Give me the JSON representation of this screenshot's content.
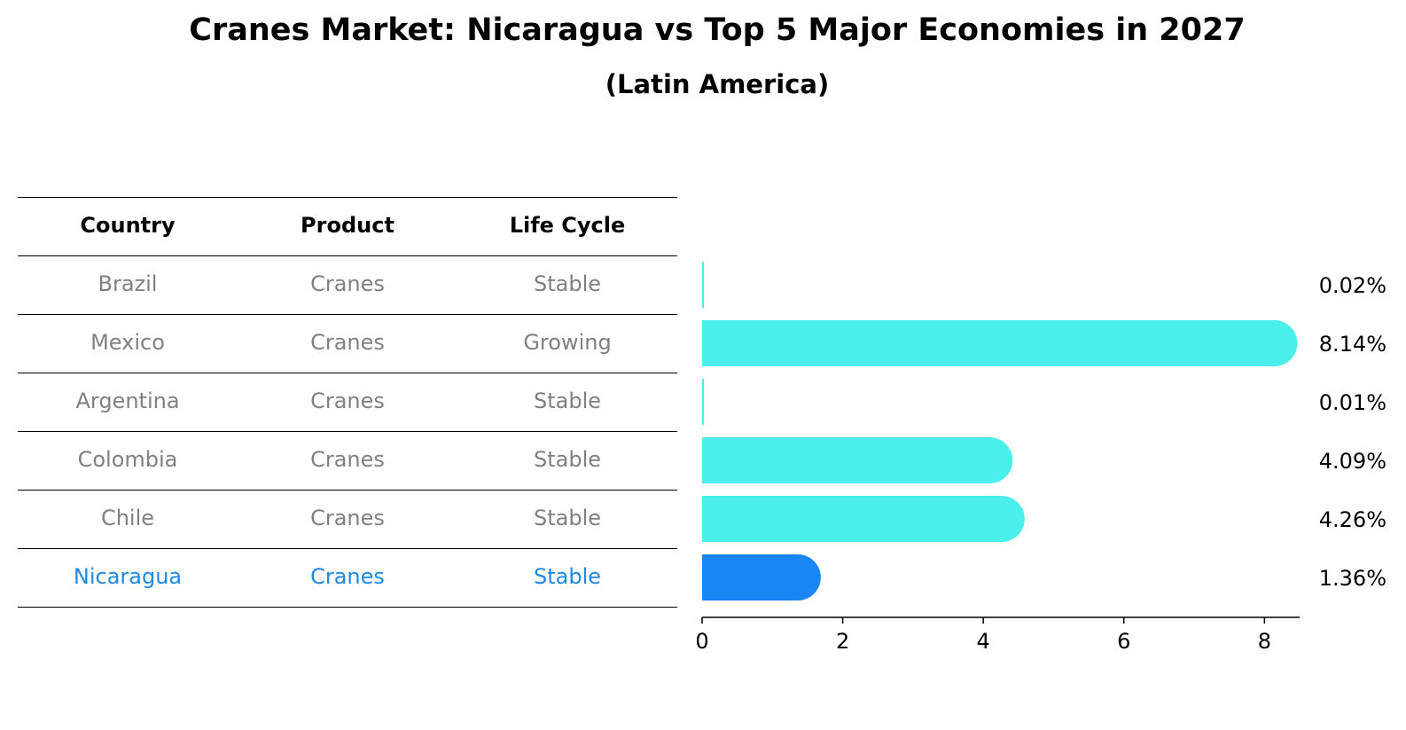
{
  "header": {
    "title": "Cranes Market: Nicaragua vs Top 5 Major Economies in 2027",
    "subtitle": "(Latin America)"
  },
  "table": {
    "columns": [
      "Country",
      "Product",
      "Life Cycle"
    ],
    "rows": [
      {
        "country": "Brazil",
        "product": "Cranes",
        "life_cycle": "Stable"
      },
      {
        "country": "Mexico",
        "product": "Cranes",
        "life_cycle": "Growing"
      },
      {
        "country": "Argentina",
        "product": "Cranes",
        "life_cycle": "Stable"
      },
      {
        "country": "Colombia",
        "product": "Cranes",
        "life_cycle": "Stable"
      },
      {
        "country": "Chile",
        "product": "Cranes",
        "life_cycle": "Stable"
      },
      {
        "country": "Nicaragua",
        "product": "Cranes",
        "life_cycle": "Stable"
      }
    ],
    "highlight_row": 5,
    "text_color": "#808080",
    "highlight_color": "#1e88e5"
  },
  "chart_data": {
    "type": "bar",
    "orientation": "horizontal",
    "categories": [
      "Brazil",
      "Mexico",
      "Argentina",
      "Colombia",
      "Chile",
      "Nicaragua"
    ],
    "values": [
      0.02,
      8.14,
      0.01,
      4.09,
      4.26,
      1.36
    ],
    "value_labels": [
      "0.02%",
      "8.14%",
      "0.01%",
      "4.09%",
      "4.26%",
      "1.36%"
    ],
    "xlim": [
      0,
      8.5
    ],
    "xticks": [
      0,
      2,
      4,
      6,
      8
    ],
    "grid": false,
    "bar_color": "#4aeeea",
    "highlight_color": "#1a85f5",
    "highlight_index": 5
  }
}
